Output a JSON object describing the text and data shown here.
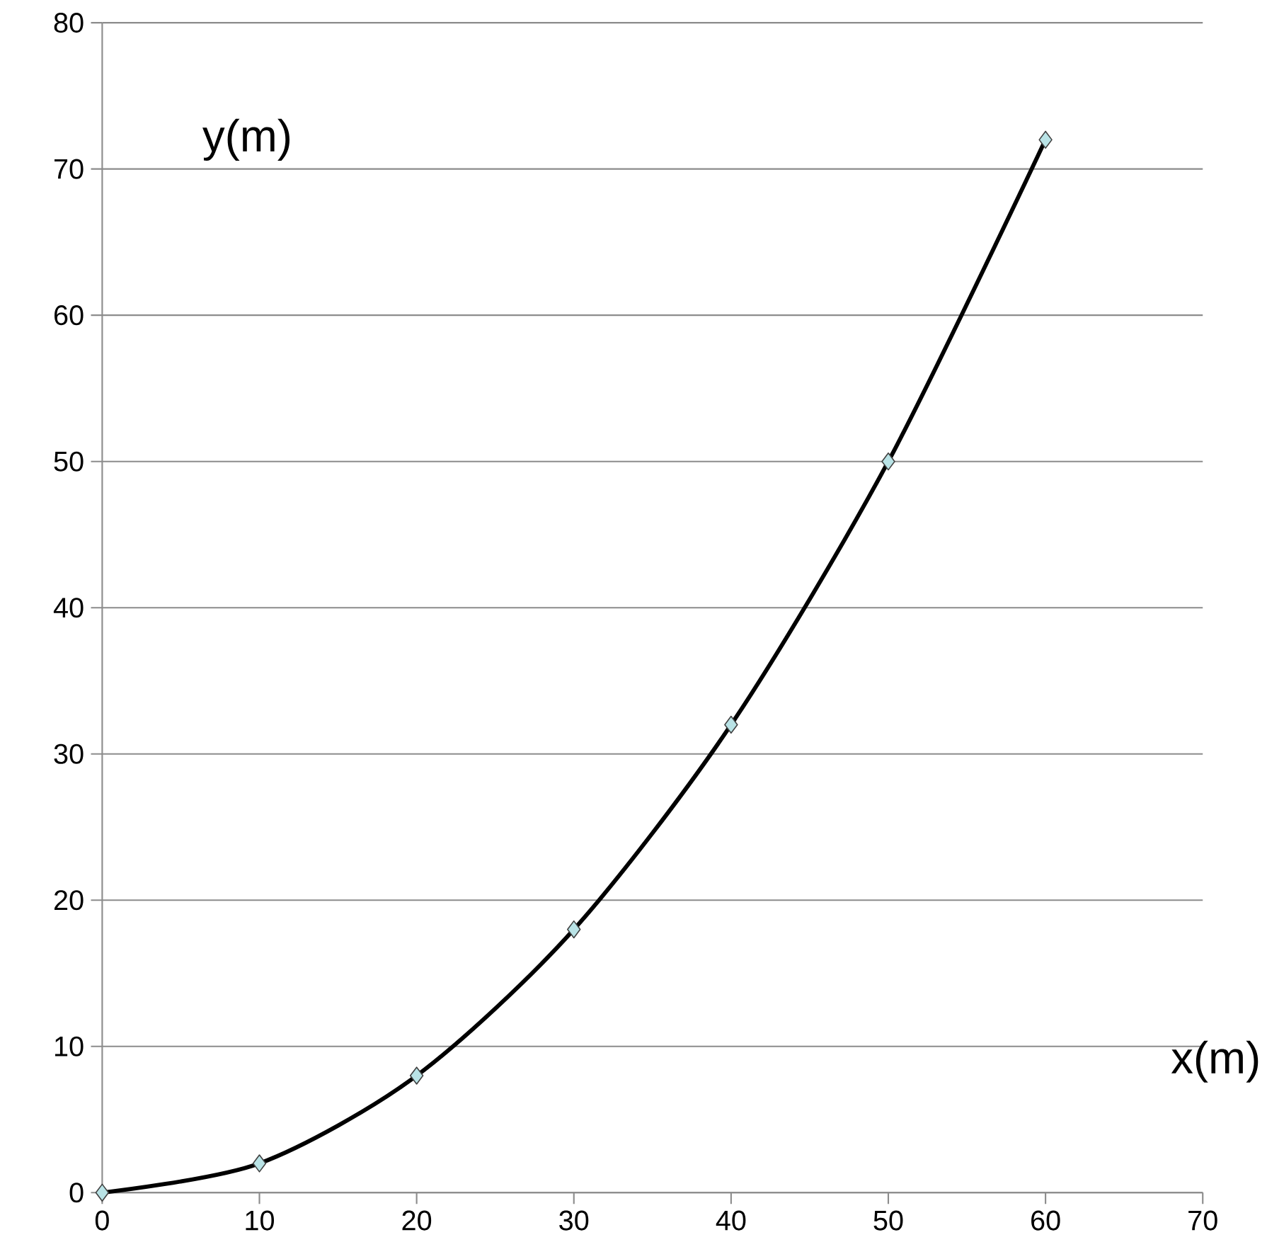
{
  "chart_data": {
    "type": "line",
    "xlabel": "x(m)",
    "ylabel": "y(m)",
    "series": [
      {
        "color": "#000000",
        "x": [
          0,
          10,
          20,
          30,
          40,
          50,
          60
        ],
        "values": [
          0,
          2,
          8,
          18,
          32,
          50,
          72
        ]
      }
    ],
    "xlim": [
      0,
      70
    ],
    "xticks": [
      0,
      10,
      20,
      30,
      40,
      50,
      60,
      70
    ],
    "ylim": [
      0,
      80
    ],
    "yticks": [
      0,
      10,
      20,
      30,
      40,
      50,
      60,
      70,
      80
    ],
    "grid": "y",
    "marker": "diamond",
    "line_style": "solid"
  }
}
